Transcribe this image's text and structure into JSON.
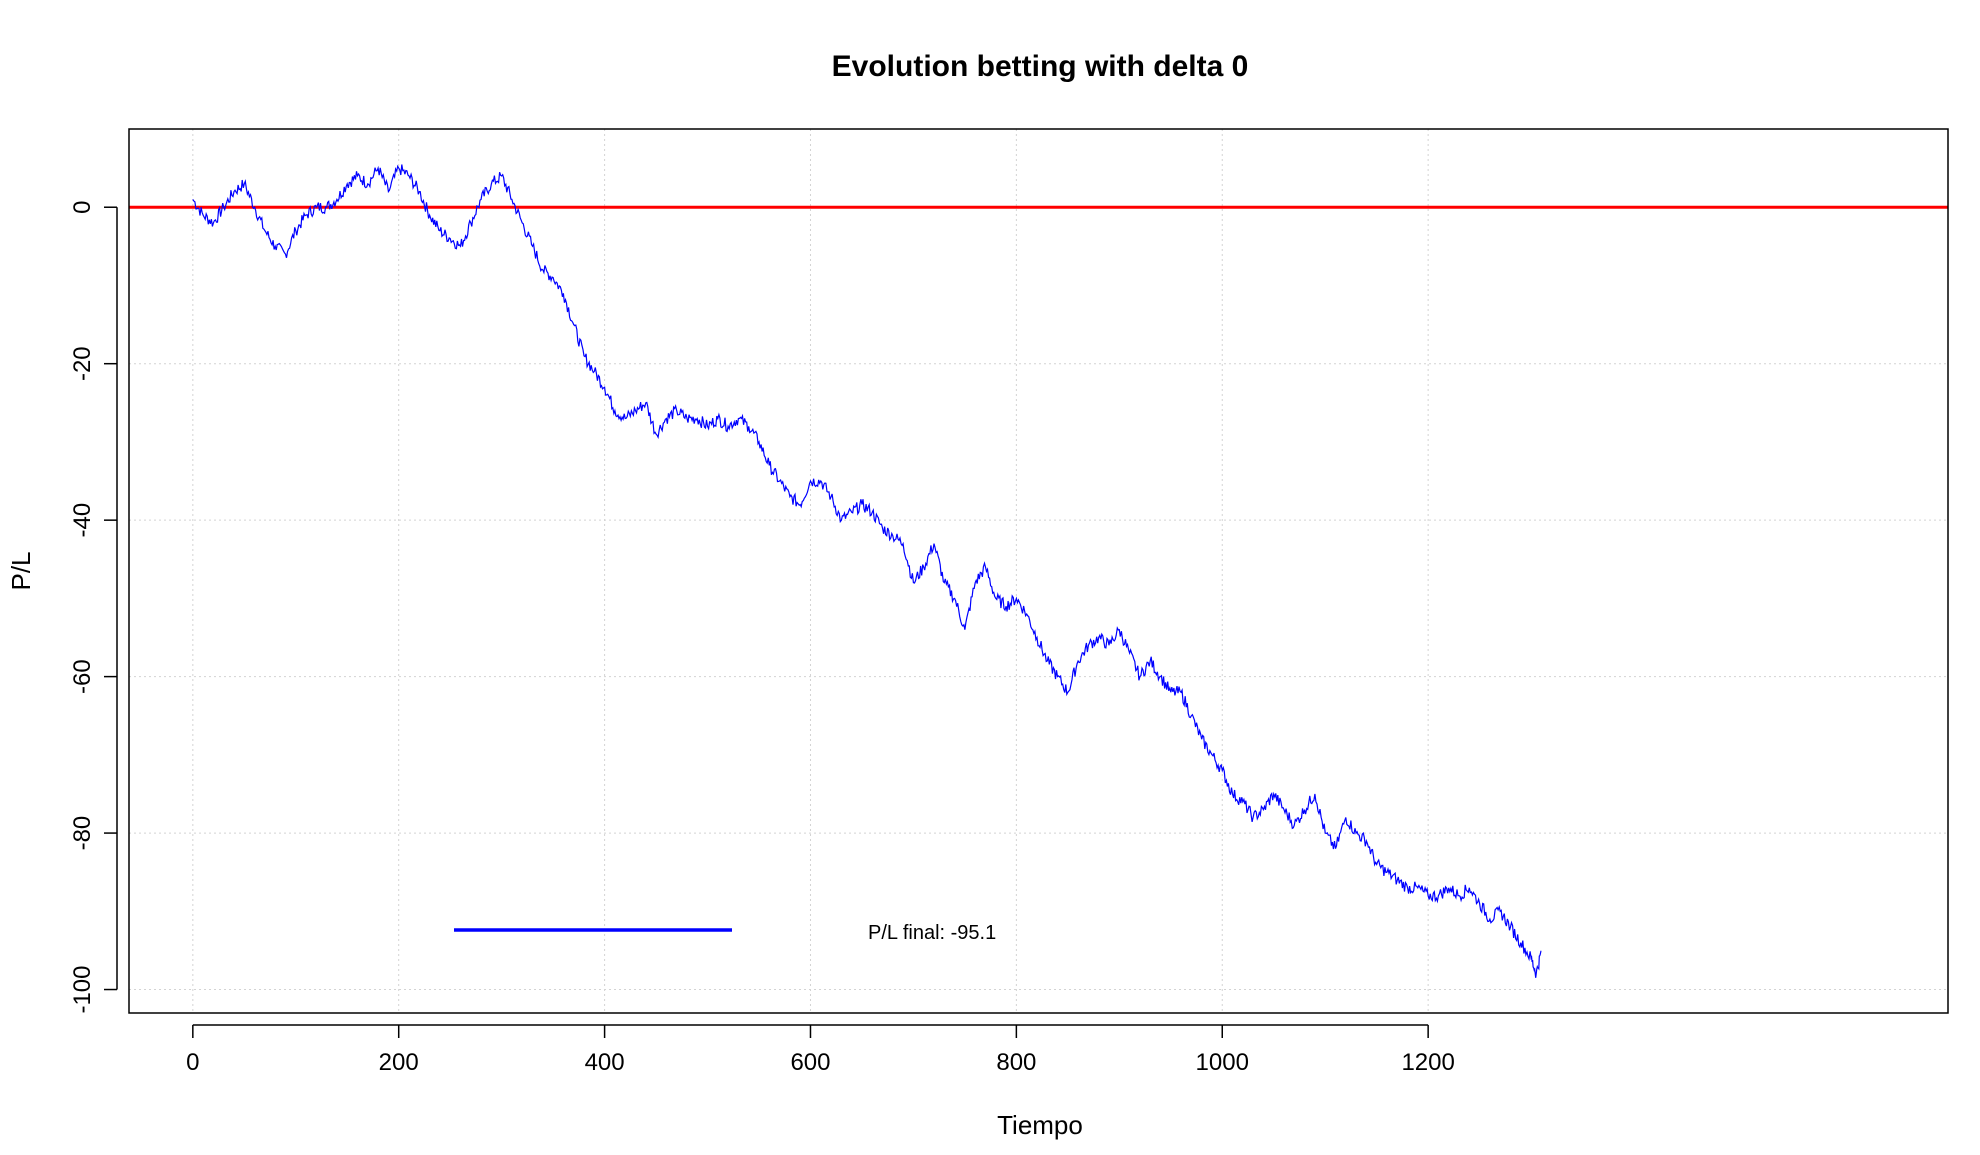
{
  "chart_data": {
    "type": "line",
    "title": "Evolution betting with delta 0",
    "xlabel": "Tiempo",
    "ylabel": "P/L",
    "xlim": [
      -62,
      1705
    ],
    "ylim": [
      -103,
      10
    ],
    "x_ticks": [
      0,
      200,
      400,
      600,
      800,
      1000,
      1200
    ],
    "y_ticks": [
      0,
      -20,
      -40,
      -60,
      -80,
      -100
    ],
    "grid": true,
    "colors": {
      "series": "#0000ff",
      "reference": "#ff0000"
    },
    "reference_line": {
      "y": 0
    },
    "series": [
      {
        "x": [
          0,
          10,
          20,
          30,
          40,
          50,
          60,
          70,
          80,
          90,
          100,
          110,
          120,
          130,
          140,
          150,
          160,
          170,
          180,
          190,
          200,
          210,
          220,
          230,
          240,
          250,
          260,
          270,
          280,
          290,
          300,
          310,
          320,
          330,
          340,
          350,
          360,
          370,
          380,
          390,
          400,
          410,
          420,
          430,
          440,
          450,
          460,
          470,
          480,
          490,
          500,
          510,
          520,
          530,
          540,
          550,
          560,
          570,
          580,
          590,
          600,
          610,
          620,
          630,
          640,
          650,
          660,
          670,
          680,
          690,
          700,
          710,
          720,
          730,
          740,
          750,
          760,
          770,
          780,
          790,
          800,
          810,
          820,
          830,
          840,
          850,
          860,
          870,
          880,
          890,
          900,
          910,
          920,
          930,
          940,
          950,
          960,
          970,
          980,
          990,
          1000,
          1010,
          1020,
          1030,
          1040,
          1050,
          1060,
          1070,
          1080,
          1090,
          1100,
          1110,
          1120,
          1130,
          1140,
          1150,
          1160,
          1170,
          1180,
          1190,
          1200,
          1210,
          1220,
          1230,
          1240,
          1250,
          1260,
          1270,
          1280,
          1290,
          1300,
          1305,
          1310
        ],
        "y": [
          1,
          -1,
          -2,
          0,
          2,
          3,
          0,
          -3,
          -5,
          -6,
          -3,
          -1,
          0,
          0,
          1,
          3,
          4,
          3,
          5,
          2,
          5,
          4,
          2,
          -1,
          -3,
          -4,
          -5,
          -2,
          1,
          3,
          4,
          1,
          -2,
          -5,
          -8,
          -9,
          -11,
          -15,
          -19,
          -21,
          -23,
          -26,
          -27,
          -26,
          -25,
          -29,
          -27,
          -26,
          -27,
          -27,
          -28,
          -27,
          -28,
          -27,
          -28,
          -30,
          -33,
          -35,
          -37,
          -38,
          -35,
          -35,
          -37,
          -40,
          -39,
          -38,
          -39,
          -41,
          -42,
          -43,
          -48,
          -46,
          -43,
          -48,
          -50,
          -54,
          -48,
          -46,
          -50,
          -51,
          -50,
          -52,
          -55,
          -58,
          -60,
          -62,
          -58,
          -56,
          -55,
          -56,
          -54,
          -57,
          -60,
          -58,
          -60,
          -62,
          -62,
          -65,
          -68,
          -70,
          -72,
          -75,
          -76,
          -78,
          -77,
          -75,
          -77,
          -79,
          -77,
          -75,
          -80,
          -82,
          -78,
          -80,
          -81,
          -84,
          -85,
          -86,
          -87,
          -87,
          -88,
          -88,
          -87,
          -88,
          -87,
          -89,
          -91,
          -90,
          -92,
          -94,
          -96,
          -98,
          -95.1
        ]
      }
    ],
    "legend": {
      "text": "P/L final: -95.1",
      "color": "#0000ff"
    }
  }
}
